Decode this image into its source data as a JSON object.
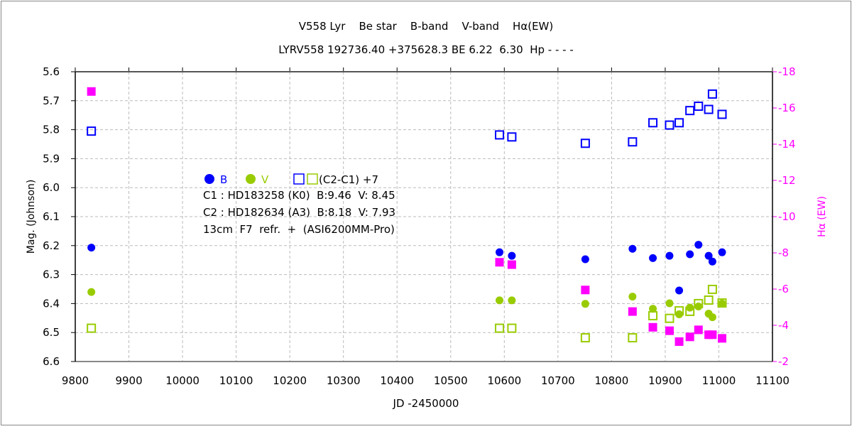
{
  "chart_data": {
    "type": "scatter",
    "title": "V558 Lyr    Be star    B-band    V-band    Hα(EW)",
    "subtitle": "LYRV558 192736.40 +375628.3 BE 6.22  6.30  Hp - - - -",
    "xlabel": "JD -2450000",
    "ylabel": "Mag. (Johnson)",
    "y2label": "Hα (EW)",
    "xlim": [
      9800,
      11100
    ],
    "ylim": [
      5.6,
      6.6
    ],
    "y2lim": [
      -18,
      -2
    ],
    "xticks": [
      9800,
      9900,
      10000,
      10100,
      10200,
      10300,
      10400,
      10500,
      10600,
      10700,
      10800,
      10900,
      11000,
      11100
    ],
    "yticks": [
      "5.6",
      "5.7",
      "5.8",
      "5.9",
      "6.0",
      "6.1",
      "6.2",
      "6.3",
      "6.4",
      "6.5",
      "6.6"
    ],
    "y2ticks": [
      -18,
      -16,
      -14,
      -12,
      -10,
      -8,
      -6,
      -4,
      -2
    ],
    "grid": true,
    "legend": {
      "b_label": "B",
      "v_label": "V",
      "diff_label": "(C2-C1) +7",
      "c1": "C1 : HD183258 (K0)  B:9.46  V: 8.45",
      "c2": "C2 : HD182634 (A3)  B:8.18  V: 7.93",
      "equipment": "13cm  F7  refr.  +  (ASI6200MM-Pro)"
    },
    "colors": {
      "B": "#0000ff",
      "V": "#99cc00",
      "Ha": "#ff00ff"
    },
    "jd": [
      9830,
      10591,
      10614,
      10751,
      10839,
      10877,
      10908,
      10926,
      10946,
      10962,
      10981,
      10988,
      11006
    ],
    "series": [
      {
        "name": "B",
        "marker": "dot",
        "axis": "left",
        "color": "#0000ff",
        "values": [
          6.207,
          6.223,
          6.235,
          6.247,
          6.211,
          6.243,
          6.235,
          6.355,
          6.23,
          6.197,
          6.235,
          6.255,
          6.223
        ]
      },
      {
        "name": "V",
        "marker": "dot",
        "axis": "left",
        "color": "#99cc00",
        "values": [
          6.36,
          6.389,
          6.389,
          6.401,
          6.376,
          6.418,
          6.399,
          6.437,
          6.414,
          6.41,
          6.435,
          6.447,
          6.4
        ]
      },
      {
        "name": "B (C2-C1)+7",
        "marker": "open-square",
        "axis": "left",
        "color": "#0000ff",
        "values": [
          5.805,
          5.818,
          5.825,
          5.847,
          5.842,
          5.776,
          5.784,
          5.776,
          5.734,
          5.719,
          5.73,
          5.677,
          5.747
        ]
      },
      {
        "name": "V (C2-C1)+7",
        "marker": "open-square",
        "axis": "left",
        "color": "#99cc00",
        "values": [
          6.485,
          6.485,
          6.485,
          6.518,
          6.518,
          6.442,
          6.451,
          6.425,
          6.427,
          6.4,
          6.388,
          6.351,
          6.398
        ]
      },
      {
        "name": "Hα EW",
        "marker": "filled-square",
        "axis": "right",
        "color": "#ff00ff",
        "values": [
          -16.91,
          -7.48,
          -7.35,
          -5.95,
          -4.76,
          -3.89,
          -3.7,
          -3.1,
          -3.36,
          -3.75,
          -3.48,
          -3.48,
          -3.28
        ]
      }
    ]
  }
}
